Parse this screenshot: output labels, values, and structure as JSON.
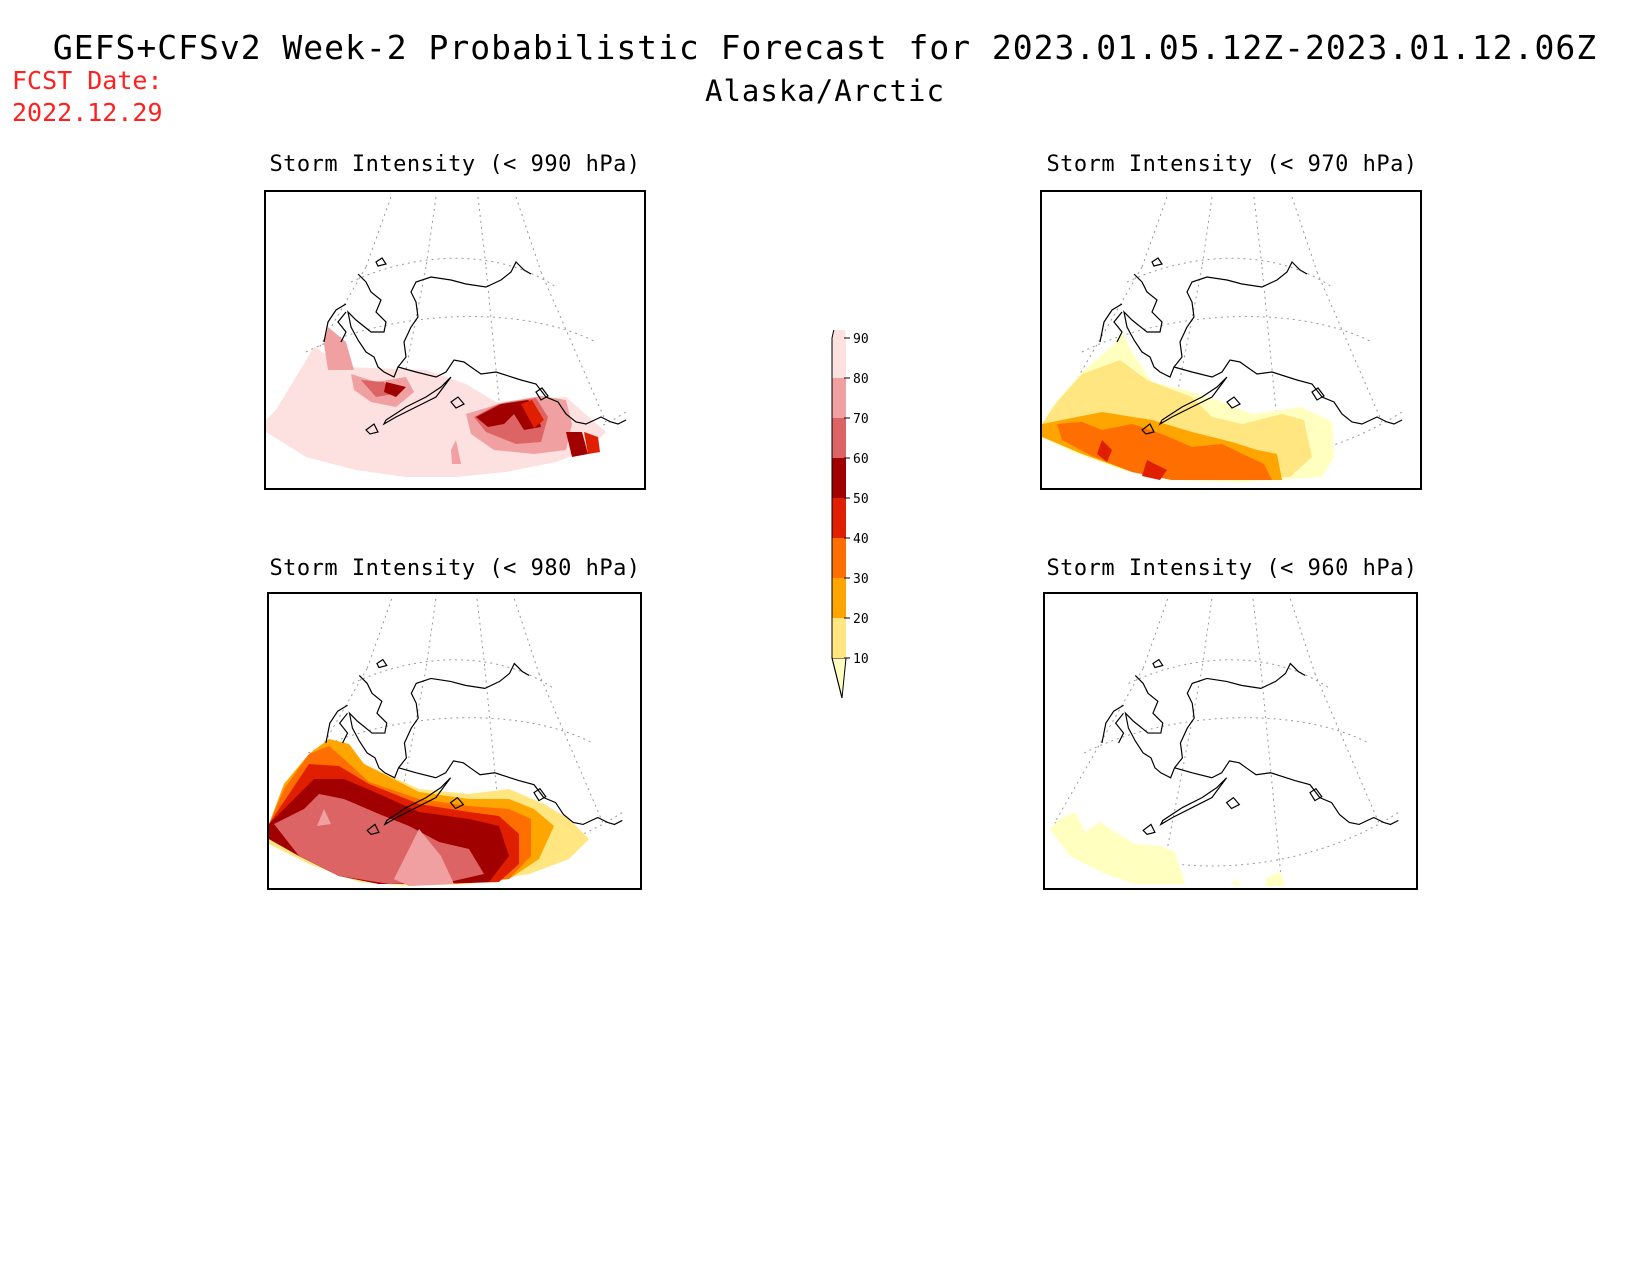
{
  "header": {
    "title": "GEFS+CFSv2 Week-2 Probabilistic Forecast for 2023.01.05.12Z-2023.01.12.06Z",
    "subtitle": "Alaska/Arctic",
    "fcst_label": "FCST Date:",
    "fcst_date": "2022.12.29"
  },
  "panels": [
    {
      "id": "p990",
      "title": "Storm Intensity (< 990 hPa)"
    },
    {
      "id": "p970",
      "title": "Storm Intensity (< 970 hPa)"
    },
    {
      "id": "p980",
      "title": "Storm Intensity (< 980 hPa)"
    },
    {
      "id": "p960",
      "title": "Storm Intensity (< 960 hPa)"
    }
  ],
  "legend": {
    "levels": [
      "10",
      "20",
      "30",
      "40",
      "50",
      "60",
      "70",
      "80",
      "90"
    ],
    "colors": {
      "c10": "#ffffc0",
      "c20": "#ffe680",
      "c30": "#ffa500",
      "c40": "#ff6e00",
      "c50": "#e01e00",
      "c60": "#a00000",
      "c70": "#dc6464",
      "c80": "#f0a0a0",
      "c90": "#fde0e0"
    }
  }
}
